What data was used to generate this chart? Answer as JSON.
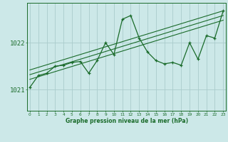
{
  "background_color": "#cce8e8",
  "grid_color": "#aacccc",
  "line_color": "#1a6b2a",
  "xlabel": "Graphe pression niveau de la mer (hPa)",
  "ylabel_ticks": [
    1021,
    1022
  ],
  "x_ticks": [
    0,
    1,
    2,
    3,
    4,
    5,
    6,
    7,
    8,
    9,
    10,
    11,
    12,
    13,
    14,
    15,
    16,
    17,
    18,
    19,
    20,
    21,
    22,
    23
  ],
  "ylim": [
    1020.55,
    1022.85
  ],
  "xlim": [
    -0.3,
    23.3
  ],
  "main_series": [
    1021.05,
    1021.3,
    1021.35,
    1021.5,
    1021.52,
    1021.58,
    1021.6,
    1021.35,
    1021.62,
    1022.0,
    1021.75,
    1022.5,
    1022.58,
    1022.1,
    1021.8,
    1021.62,
    1021.55,
    1021.58,
    1021.52,
    1022.0,
    1021.65,
    1022.15,
    1022.1,
    1022.68
  ],
  "trend_lines": [
    [
      [
        0,
        1021.22
      ],
      [
        23,
        1022.48
      ]
    ],
    [
      [
        0,
        1021.32
      ],
      [
        23,
        1022.58
      ]
    ],
    [
      [
        0,
        1021.42
      ],
      [
        23,
        1022.68
      ]
    ]
  ]
}
